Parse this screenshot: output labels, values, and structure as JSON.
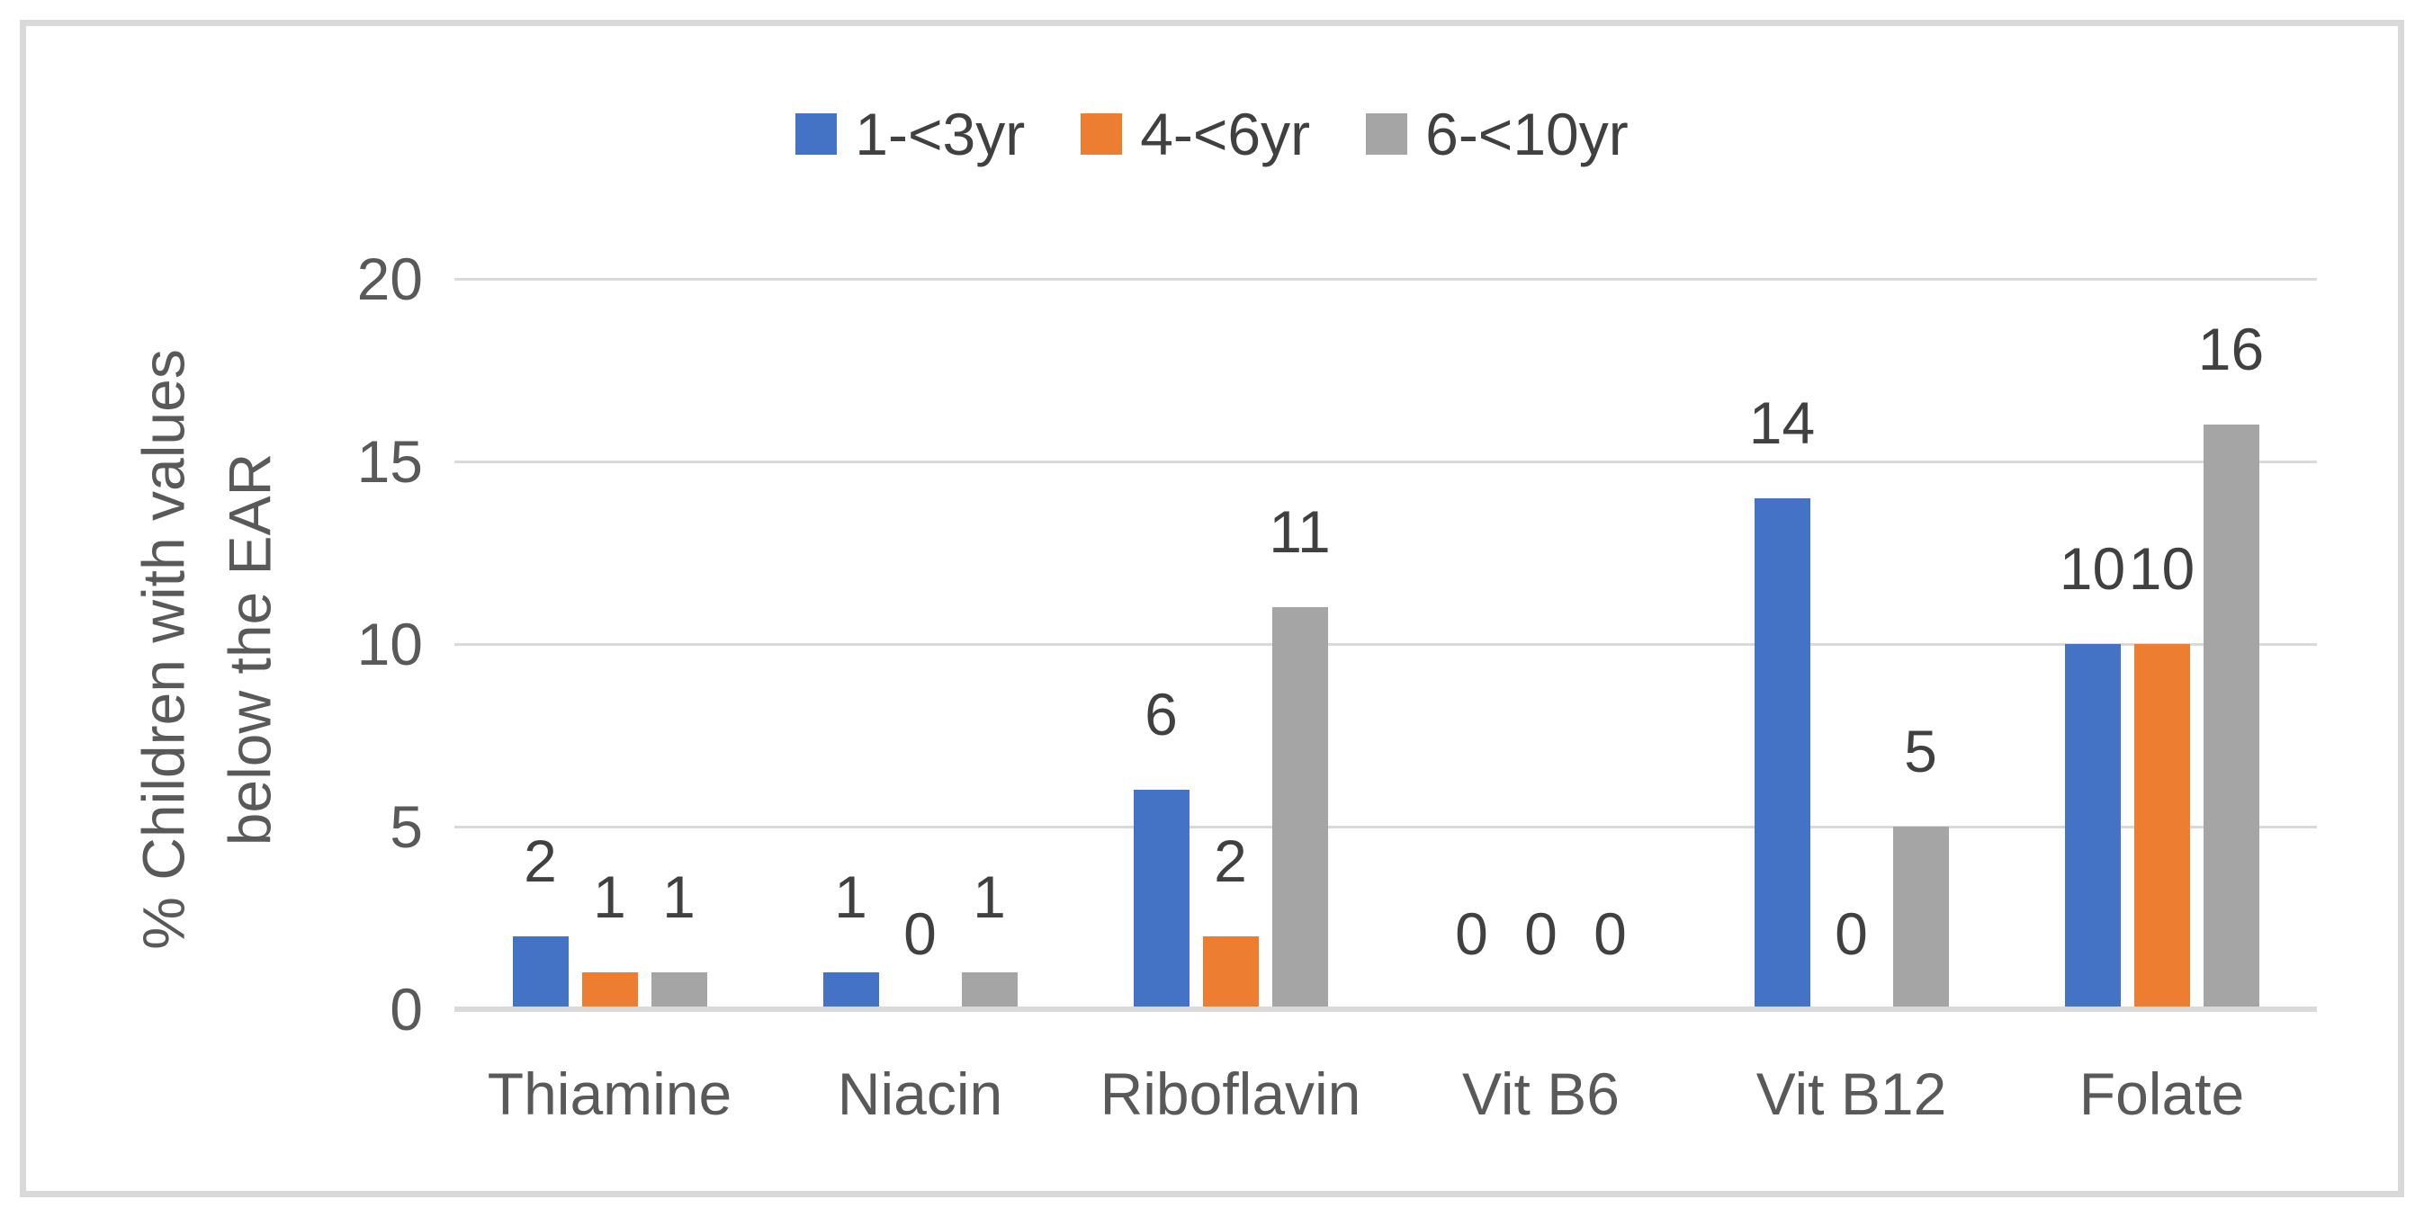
{
  "figure": {
    "background": "#ffffff",
    "border_color": "#d9d9d9"
  },
  "legend": {
    "position": "top-center",
    "items": [
      {
        "label": "1-<3yr",
        "color": "#4472c4"
      },
      {
        "label": "4-<6yr",
        "color": "#ed7d31"
      },
      {
        "label": "6-<10yr",
        "color": "#a5a5a5"
      }
    ]
  },
  "chart_data": {
    "type": "bar",
    "title": "",
    "categories": [
      "Thiamine",
      "Niacin",
      "Riboflavin",
      "Vit B6",
      "Vit B12",
      "Folate"
    ],
    "series": [
      {
        "name": "1-<3yr",
        "color": "#4472c4",
        "values": [
          2,
          1,
          6,
          0,
          14,
          10
        ]
      },
      {
        "name": "4-<6yr",
        "color": "#ed7d31",
        "values": [
          1,
          0,
          2,
          0,
          0,
          10
        ]
      },
      {
        "name": "6-<10yr",
        "color": "#a5a5a5",
        "values": [
          1,
          1,
          11,
          0,
          5,
          16
        ]
      }
    ],
    "xlabel": "",
    "ylabel_lines": [
      "% Children with values",
      "below the EAR"
    ],
    "y_ticks": [
      0,
      5,
      10,
      15,
      20
    ],
    "ylim": [
      0,
      20
    ],
    "grid": true,
    "gridline_color": "#d9d9d9",
    "data_labels": true,
    "data_label_color": "#404040",
    "axis_text_color": "#595959",
    "legend_position": "top"
  }
}
